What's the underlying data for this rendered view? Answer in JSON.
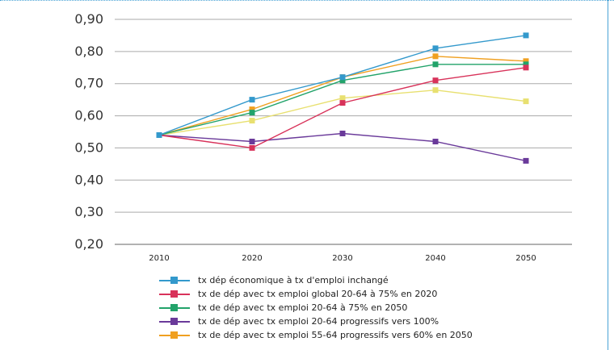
{
  "chart_data": {
    "type": "line",
    "title": "",
    "xlabel": "",
    "ylabel": "",
    "categories": [
      "2010",
      "2020",
      "2030",
      "2040",
      "2050"
    ],
    "y_ticks": [
      "0,20",
      "0,30",
      "0,40",
      "0,50",
      "0,60",
      "0,70",
      "0,80",
      "0,90"
    ],
    "ylim": [
      0.2,
      0.9
    ],
    "grid": "horizontal",
    "legend_position": "bottom",
    "series": [
      {
        "name": "tx dép économique à tx d'emploi inchangé",
        "color": "#3399cc",
        "values": [
          0.54,
          0.65,
          0.72,
          0.81,
          0.85
        ]
      },
      {
        "name": "tx de dép avec tx emploi global 20-64 à 75% en 2020",
        "color": "#d8325a",
        "values": [
          0.54,
          0.5,
          0.64,
          0.71,
          0.75
        ]
      },
      {
        "name": "tx de dép avec tx emploi 20-64 à 75% en 2050",
        "color": "#22a36a",
        "values": [
          0.54,
          0.61,
          0.71,
          0.76,
          0.76
        ]
      },
      {
        "name": "tx de dép avec tx emploi 20-64 progressifs vers 100%",
        "color": "#6a3a9a",
        "values": [
          0.54,
          0.52,
          0.545,
          0.52,
          0.46
        ]
      },
      {
        "name": "tx de dép avec tx emploi 55-64 progressifs vers 60% en 2050",
        "color": "#f0a020",
        "values": [
          0.54,
          0.62,
          0.72,
          0.785,
          0.77
        ]
      },
      {
        "name": "",
        "color": "#e8e070",
        "values": [
          0.54,
          0.585,
          0.655,
          0.68,
          0.645
        ]
      }
    ]
  }
}
